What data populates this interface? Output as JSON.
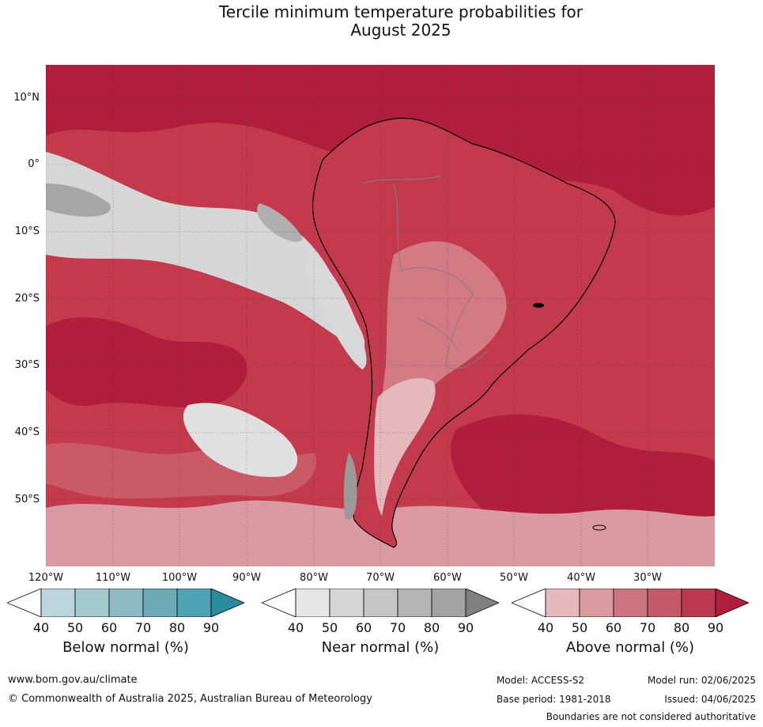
{
  "title": {
    "line1": "Tercile minimum temperature probabilities for",
    "line2": "August 2025"
  },
  "map": {
    "lat_labels": [
      "10°N",
      "0°",
      "10°S",
      "20°S",
      "30°S",
      "40°S",
      "50°S"
    ],
    "lon_labels": [
      "120°W",
      "110°W",
      "100°W",
      "90°W",
      "80°W",
      "70°W",
      "60°W",
      "50°W",
      "40°W",
      "30°W"
    ],
    "colors": {
      "ocean_base": "#c23a4c",
      "above_90": "#b01e3c",
      "above_80": "#c23a4c",
      "above_70": "#cb5a67",
      "above_60": "#d47a83",
      "above_50": "#db9aa0",
      "above_40": "#e4b8bc",
      "near_50": "#d6d6d6",
      "near_70": "#b8b8b8",
      "near_80": "#a6a6a6",
      "near_40": "#e6e6e6",
      "coast": "#000000",
      "border": "#808080"
    }
  },
  "legend": [
    {
      "title": "Below normal (%)",
      "ticks": [
        "40",
        "50",
        "60",
        "70",
        "80",
        "90"
      ],
      "colors": [
        "#ffffff",
        "#bcd6dc",
        "#a6c8cf",
        "#8cb9c4",
        "#6eaab8",
        "#4ea2b3",
        "#2a8aa0"
      ]
    },
    {
      "title": "Near normal (%)",
      "ticks": [
        "40",
        "50",
        "60",
        "70",
        "80",
        "90"
      ],
      "colors": [
        "#ffffff",
        "#e6e6e6",
        "#d6d6d6",
        "#c6c6c6",
        "#b5b5b5",
        "#a3a3a3",
        "#808080"
      ]
    },
    {
      "title": "Above normal (%)",
      "ticks": [
        "40",
        "50",
        "60",
        "70",
        "80",
        "90"
      ],
      "colors": [
        "#ffffff",
        "#e4b8bc",
        "#d99aa0",
        "#cd7480",
        "#c45a68",
        "#bb3a50",
        "#b01e3c"
      ]
    }
  ],
  "footer": {
    "url": "www.bom.gov.au/climate",
    "copyright": "© Commonwealth of Australia 2025, Australian Bureau of Meteorology",
    "model": "Model: ACCESS-S2",
    "base_period": "Base period: 1981-2018",
    "model_run": "Model run: 02/06/2025",
    "issued": "Issued: 04/06/2025",
    "disclaimer": "Boundaries are not considered authoritative"
  }
}
